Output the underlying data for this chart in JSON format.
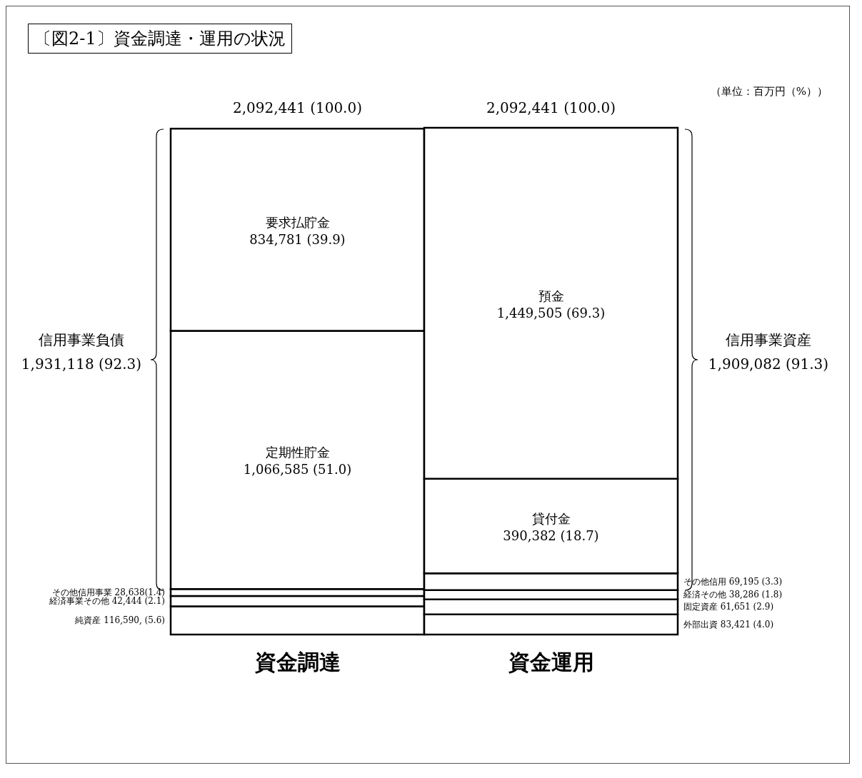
{
  "chart_data": {
    "type": "bar",
    "title": "〔図2-1〕資金調達・運用の状況",
    "categories": [
      "資金調達",
      "資金運用"
    ],
    "stacked": true,
    "legend": false,
    "grid": false,
    "series": [
      {
        "name": "純資産",
        "color": "#ffffff",
        "values": [
          116590,
          null
        ],
        "value_labels": [
          "116,590, (5.6)",
          null
        ]
      },
      {
        "name": "経済事業その他",
        "color": "#ffffff",
        "values": [
          42444,
          null
        ],
        "value_labels": [
          "42,444 (2.1)",
          null
        ]
      },
      {
        "name": "その他信用事業",
        "color": "#ffffff",
        "values": [
          28638,
          null
        ],
        "value_labels": [
          "28,638(1.4)",
          null
        ]
      },
      {
        "name": "定期性貯金",
        "color": "#ffffff",
        "values": [
          1066585,
          null
        ],
        "value_labels": [
          "1,066,585 (51.0)",
          null
        ]
      },
      {
        "name": "要求払貯金",
        "color": "#ffffff",
        "values": [
          834781,
          null
        ],
        "value_labels": [
          "834,781 (39.9)",
          null
        ]
      },
      {
        "name": "外部出資",
        "color": "#ffffff",
        "values": [
          null,
          83421
        ],
        "value_labels": [
          null,
          "83,421 (4.0)"
        ]
      },
      {
        "name": "固定資産",
        "color": "#ffffff",
        "values": [
          null,
          61651
        ],
        "value_labels": [
          null,
          "61,651 (2.9)"
        ]
      },
      {
        "name": "経済その他",
        "color": "#ffffff",
        "values": [
          null,
          38286
        ],
        "value_labels": [
          null,
          "38,286 (1.8)"
        ]
      },
      {
        "name": "その他信用",
        "color": "#ffffff",
        "values": [
          null,
          69195
        ],
        "value_labels": [
          null,
          "69,195 (3.3)"
        ]
      },
      {
        "name": "貸付金",
        "color": "#ffffff",
        "values": [
          null,
          390382
        ],
        "value_labels": [
          null,
          "390,382 (18.7)"
        ]
      },
      {
        "name": "預金",
        "color": "#ffffff",
        "values": [
          null,
          1449505
        ],
        "value_labels": [
          null,
          "1,449,505 (69.3)"
        ]
      }
    ],
    "totals": [
      "2,092,441 (100.0)",
      "2,092,441 (100.0)"
    ],
    "annotations": [
      "（単位：百万円（%））",
      "信用事業負債 1,931,118 (92.3)",
      "信用事業資産 1,909,082 (91.3)"
    ]
  }
}
